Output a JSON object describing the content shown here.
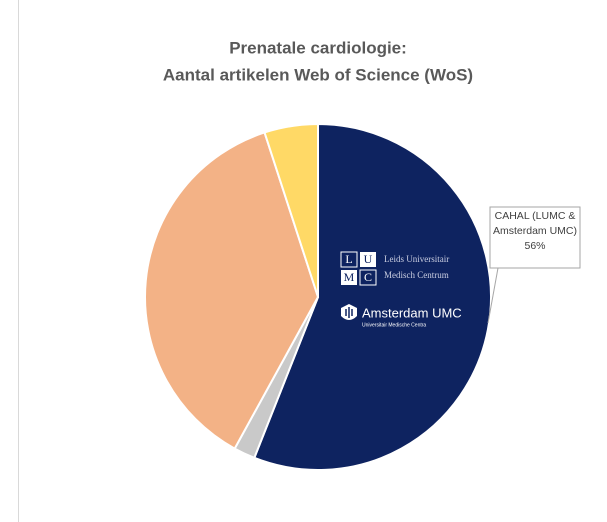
{
  "chart_data": {
    "type": "pie",
    "title": "Prenatale cardiologie:",
    "subtitle": "Aantal artikelen Web of Science (WoS)",
    "categories": [
      "CAHAL (LUMC & Amsterdam UMC)",
      null,
      null,
      null
    ],
    "values": [
      56,
      2,
      37,
      5
    ],
    "value_labels": [
      "56%",
      null,
      null,
      null
    ],
    "colors": [
      "#0e2360",
      "#c9c9c9",
      "#f3b286",
      "#ffd966"
    ],
    "logos": {
      "lumc": [
        "Leids Universitair",
        "Medisch Centrum"
      ],
      "amc": [
        "Amsterdam UMC",
        "Universitair Medische Centra"
      ]
    }
  }
}
